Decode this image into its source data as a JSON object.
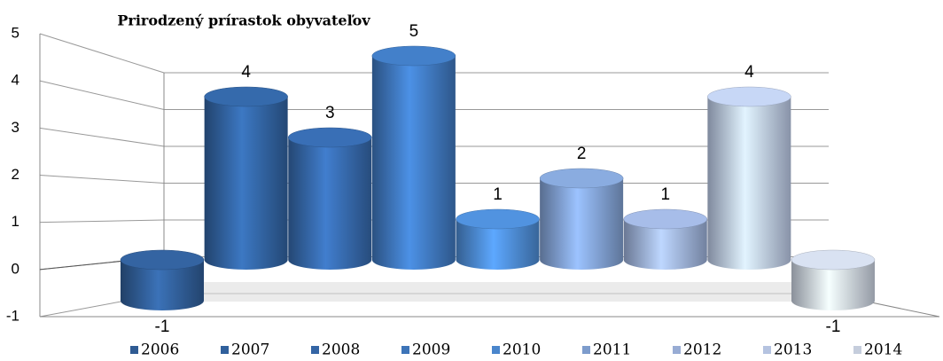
{
  "chart_data": {
    "type": "bar",
    "title": "Prirodzený prírastok obyvateľov",
    "categories": [
      "2006",
      "2007",
      "2008",
      "2009",
      "2010",
      "2011",
      "2012",
      "2013",
      "2014"
    ],
    "values": [
      -1,
      4,
      3,
      5,
      1,
      2,
      1,
      4,
      -1
    ],
    "colors": [
      "#2f5b93",
      "#30609c",
      "#3465a5",
      "#3d74b8",
      "#4a86cc",
      "#7d9ccc",
      "#98acd4",
      "#b5c3e0",
      "#c5cddc"
    ],
    "ylim": [
      -1,
      5
    ],
    "yticks": [
      -1,
      0,
      1,
      2,
      3,
      4,
      5
    ],
    "grid": true,
    "legend": "bottom"
  }
}
